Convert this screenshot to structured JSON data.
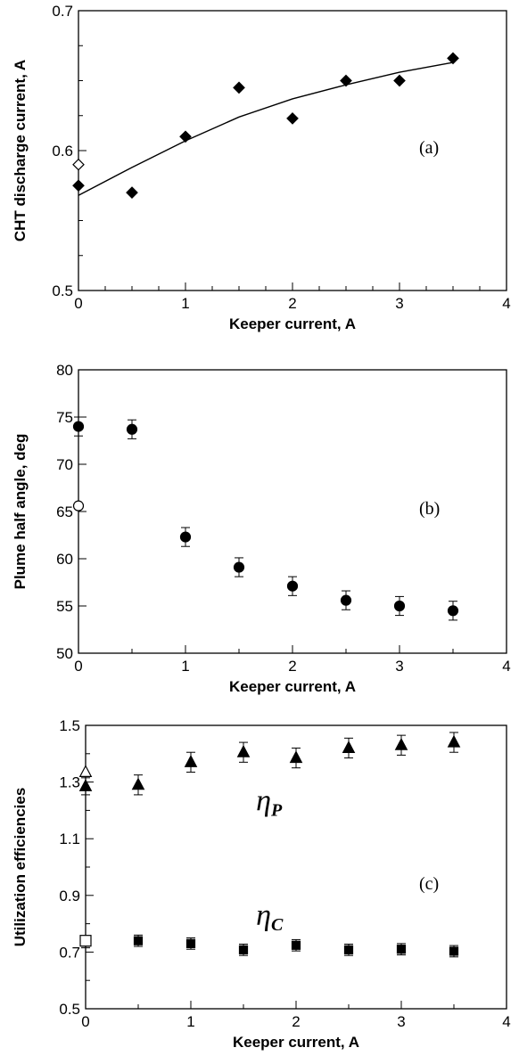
{
  "chart_data": [
    {
      "id": "a",
      "type": "scatter",
      "panel_label": "(a)",
      "xlabel": "Keeper current, A",
      "ylabel": "CHT discharge current, A",
      "xlim": [
        0,
        4
      ],
      "ylim": [
        0.5,
        0.7
      ],
      "xticks": [
        0,
        1,
        2,
        3,
        4
      ],
      "xtick_labels": [
        "0",
        "1",
        "2",
        "3",
        "4"
      ],
      "x_minor": 0.25,
      "yticks": [
        0.5,
        0.6,
        0.7
      ],
      "ytick_labels": [
        "0.5",
        "0.6",
        "0.7"
      ],
      "y_minor": 0.025,
      "grid": false,
      "series": [
        {
          "marker": "diamond-filled",
          "x": [
            0,
            0.5,
            1,
            1.5,
            2,
            2.5,
            3,
            3.5
          ],
          "y": [
            0.575,
            0.57,
            0.61,
            0.645,
            0.623,
            0.65,
            0.65,
            0.666
          ]
        },
        {
          "marker": "diamond-open",
          "x": [
            0
          ],
          "y": [
            0.59
          ]
        },
        {
          "marker": "line",
          "x": [
            0,
            0.5,
            1,
            1.5,
            2,
            2.5,
            3,
            3.5
          ],
          "y": [
            0.568,
            0.588,
            0.607,
            0.624,
            0.637,
            0.647,
            0.656,
            0.663
          ]
        }
      ]
    },
    {
      "id": "b",
      "type": "scatter",
      "panel_label": "(b)",
      "xlabel": "Keeper current, A",
      "ylabel": "Plume half angle, deg",
      "xlim": [
        0,
        4
      ],
      "ylim": [
        50,
        80
      ],
      "xticks": [
        0,
        1,
        2,
        3,
        4
      ],
      "xtick_labels": [
        "0",
        "1",
        "2",
        "3",
        "4"
      ],
      "x_minor": 0.5,
      "yticks": [
        50,
        55,
        60,
        65,
        70,
        75,
        80
      ],
      "ytick_labels": [
        "50",
        "55",
        "60",
        "65",
        "70",
        "75",
        "80"
      ],
      "y_minor": 5,
      "grid": false,
      "series": [
        {
          "marker": "circle-filled",
          "x": [
            0,
            0.5,
            1,
            1.5,
            2,
            2.5,
            3,
            3.5
          ],
          "y": [
            74,
            73.7,
            62.3,
            59.1,
            57.1,
            55.6,
            55,
            54.5
          ],
          "err": [
            1,
            1,
            1,
            1,
            1,
            1,
            1,
            1
          ]
        },
        {
          "marker": "circle-open",
          "x": [
            0
          ],
          "y": [
            65.6
          ]
        }
      ]
    },
    {
      "id": "c",
      "type": "scatter",
      "panel_label": "(c)",
      "xlabel": "Keeper current, A",
      "ylabel": "Utilization efficiencies",
      "xlim": [
        0,
        4
      ],
      "ylim": [
        0.5,
        1.5
      ],
      "xticks": [
        0,
        1,
        2,
        3,
        4
      ],
      "xtick_labels": [
        "0",
        "1",
        "2",
        "3",
        "4"
      ],
      "x_minor": 0.5,
      "yticks": [
        0.5,
        0.7,
        0.9,
        1.1,
        1.3,
        1.5
      ],
      "ytick_labels": [
        "0.5",
        "0.7",
        "0.9",
        "1.1",
        "1.3",
        "1.5"
      ],
      "y_minor": 0.1,
      "grid": false,
      "annotations": [
        {
          "base": "η",
          "sub": "P",
          "x": 1.62,
          "y": 1.2
        },
        {
          "base": "η",
          "sub": "C",
          "x": 1.62,
          "y": 0.795
        }
      ],
      "series": [
        {
          "marker": "triangle-filled",
          "x": [
            0,
            0.5,
            1,
            1.5,
            2,
            2.5,
            3,
            3.5
          ],
          "y": [
            1.285,
            1.29,
            1.37,
            1.405,
            1.385,
            1.42,
            1.43,
            1.44
          ],
          "err": [
            0.03,
            0.035,
            0.035,
            0.035,
            0.035,
            0.035,
            0.035,
            0.035
          ]
        },
        {
          "marker": "triangle-open",
          "x": [
            0
          ],
          "y": [
            1.335
          ]
        },
        {
          "marker": "square-filled",
          "x": [
            0,
            0.5,
            1,
            1.5,
            2,
            2.5,
            3,
            3.5
          ],
          "y": [
            0.735,
            0.74,
            0.73,
            0.708,
            0.724,
            0.708,
            0.71,
            0.703
          ],
          "err": [
            0.02,
            0.02,
            0.02,
            0.02,
            0.02,
            0.02,
            0.02,
            0.02
          ]
        },
        {
          "marker": "square-open",
          "x": [
            0
          ],
          "y": [
            0.74
          ]
        }
      ]
    }
  ]
}
